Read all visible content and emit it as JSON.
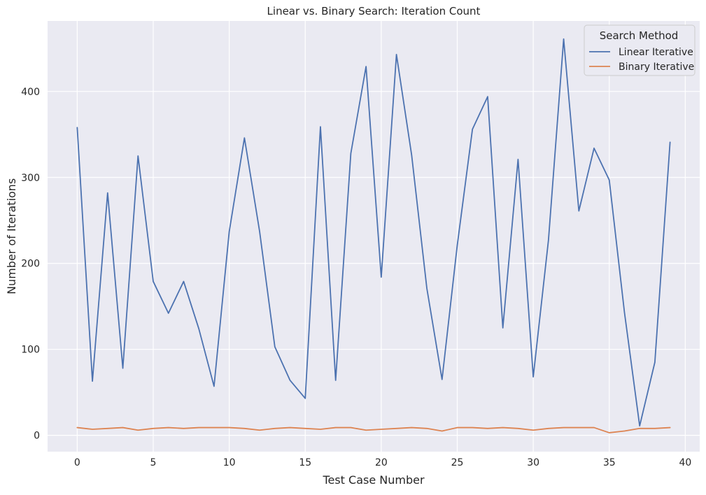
{
  "chart_data": {
    "type": "line",
    "title": "Linear vs. Binary Search: Iteration Count",
    "xlabel": "Test Case Number",
    "ylabel": "Number of Iterations",
    "xlim": [
      -1.95,
      40.95
    ],
    "ylim": [
      -19,
      482
    ],
    "xticks": [
      0,
      5,
      10,
      15,
      20,
      25,
      30,
      35,
      40
    ],
    "yticks": [
      0,
      100,
      200,
      300,
      400
    ],
    "grid": true,
    "legend": {
      "title": "Search Method",
      "placement": "top-right"
    },
    "x": [
      0,
      1,
      2,
      3,
      4,
      5,
      6,
      7,
      8,
      9,
      10,
      11,
      12,
      13,
      14,
      15,
      16,
      17,
      18,
      19,
      20,
      21,
      22,
      23,
      24,
      25,
      26,
      27,
      28,
      29,
      30,
      31,
      32,
      33,
      34,
      35,
      36,
      37,
      38,
      39
    ],
    "series": [
      {
        "name": "Linear Iterative",
        "color": "#4c72b0",
        "values": [
          358,
          63,
          282,
          78,
          325,
          179,
          142,
          179,
          124,
          57,
          237,
          346,
          237,
          103,
          64,
          43,
          359,
          64,
          328,
          429,
          184,
          443,
          326,
          171,
          65,
          221,
          356,
          394,
          125,
          321,
          68,
          227,
          461,
          261,
          334,
          297,
          143,
          11,
          85,
          341
        ]
      },
      {
        "name": "Binary Iterative",
        "color": "#dd8452",
        "values": [
          9,
          7,
          8,
          9,
          6,
          8,
          9,
          8,
          9,
          9,
          9,
          8,
          6,
          8,
          9,
          8,
          7,
          9,
          9,
          6,
          7,
          8,
          9,
          8,
          5,
          9,
          9,
          8,
          9,
          8,
          6,
          8,
          9,
          9,
          9,
          3,
          5,
          8,
          8,
          9
        ]
      }
    ]
  },
  "style": {
    "plot_background": "#eaeaf2",
    "grid_color": "#ffffff",
    "text_color": "#262626"
  }
}
